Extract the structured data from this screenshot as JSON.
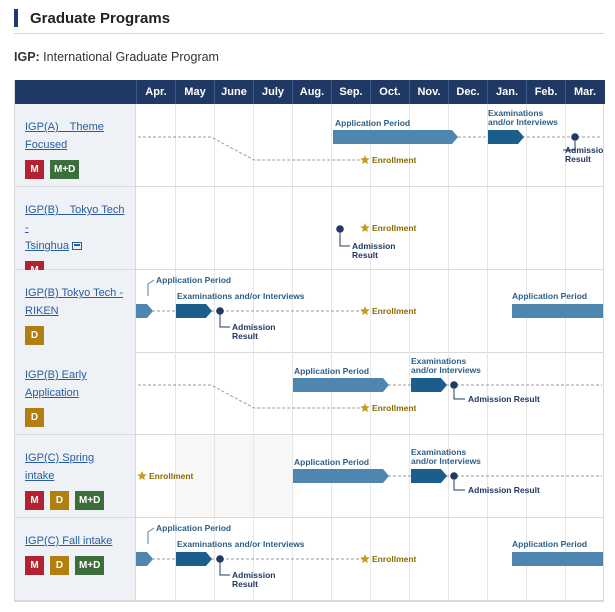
{
  "header": {
    "title": "Graduate Programs"
  },
  "subtitle": {
    "abbr": "IGP:",
    "full": " International Graduate Program"
  },
  "months": [
    "Apr.",
    "May",
    "June",
    "July",
    "Aug.",
    "Sep.",
    "Oct.",
    "Nov.",
    "Dec.",
    "Jan.",
    "Feb.",
    "Mar."
  ],
  "colors": {
    "header": "#1f3864",
    "bar_light": "#4e86b0",
    "bar_dark": "#1b5e8c",
    "star": "#c49a1a",
    "degree_m": "#b22232",
    "degree_d": "#b07f0f",
    "degree_md": "#3c6e3c"
  },
  "labels": {
    "application": "Application Period",
    "exam": "Examinations and/or Interviews",
    "exam_l1": "Examinations",
    "exam_l2": "and/or Interviews",
    "admission_l1": "Admission",
    "admission_l2": "Result",
    "enrollment": "Enrollment"
  },
  "programs": [
    {
      "name_l1": "IGP(A)　Theme",
      "name_l2": "Focused",
      "badges": [
        "M",
        "M+D"
      ]
    },
    {
      "name_l1": "IGP(B)　Tokyo Tech -",
      "name_l2": "Tsinghua",
      "badges": [
        "M"
      ],
      "external_icon": "external-link-icon"
    },
    {
      "name_l1": "IGP(B) Tokyo Tech -",
      "name_l2": "RIKEN",
      "badges": [
        "D"
      ]
    },
    {
      "name_l1": "IGP(B) Early",
      "name_l2": "Application",
      "badges": [
        "D"
      ]
    },
    {
      "name_l1": "IGP(C) Spring intake",
      "badges": [
        "M",
        "D",
        "M+D"
      ]
    },
    {
      "name_l1": "IGP(C) Fall intake",
      "badges": [
        "M",
        "D",
        "M+D"
      ]
    }
  ]
}
